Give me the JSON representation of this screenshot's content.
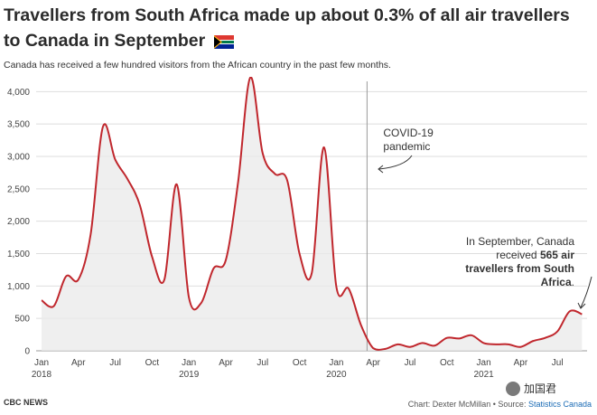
{
  "header": {
    "title": "Travellers from South Africa made up about 0.3% of all air travellers to Canada in September",
    "subtitle": "Canada has received a few hundred visitors from the African country in the past few months.",
    "flag_icon": "south-africa-flag-icon"
  },
  "chart_data": {
    "type": "area",
    "title": "Travellers from South Africa made up about 0.3% of all air travellers to Canada in September",
    "subtitle": "Canada has received a few hundred visitors from the African country in the past few months.",
    "xlabel": "",
    "ylabel": "",
    "ylim": [
      0,
      4200
    ],
    "yticks": [
      0,
      500,
      1000,
      1500,
      2000,
      2500,
      3000,
      3500,
      4000
    ],
    "ytick_labels": [
      "0",
      "500",
      "1,000",
      "1,500",
      "2,000",
      "2,500",
      "3,000",
      "3,500",
      "4,000"
    ],
    "xticks": [
      {
        "index": 0,
        "label": "Jan",
        "year": "2018"
      },
      {
        "index": 3,
        "label": "Apr",
        "year": ""
      },
      {
        "index": 6,
        "label": "Jul",
        "year": ""
      },
      {
        "index": 9,
        "label": "Oct",
        "year": ""
      },
      {
        "index": 12,
        "label": "Jan",
        "year": "2019"
      },
      {
        "index": 15,
        "label": "Apr",
        "year": ""
      },
      {
        "index": 18,
        "label": "Jul",
        "year": ""
      },
      {
        "index": 21,
        "label": "Oct",
        "year": ""
      },
      {
        "index": 24,
        "label": "Jan",
        "year": "2020"
      },
      {
        "index": 27,
        "label": "Apr",
        "year": ""
      },
      {
        "index": 30,
        "label": "Jul",
        "year": ""
      },
      {
        "index": 33,
        "label": "Oct",
        "year": ""
      },
      {
        "index": 36,
        "label": "Jan",
        "year": "2021"
      },
      {
        "index": 39,
        "label": "Apr",
        "year": ""
      },
      {
        "index": 42,
        "label": "Jul",
        "year": ""
      }
    ],
    "months": [
      "2018-01",
      "2018-02",
      "2018-03",
      "2018-04",
      "2018-05",
      "2018-06",
      "2018-07",
      "2018-08",
      "2018-09",
      "2018-10",
      "2018-11",
      "2018-12",
      "2019-01",
      "2019-02",
      "2019-03",
      "2019-04",
      "2019-05",
      "2019-06",
      "2019-07",
      "2019-08",
      "2019-09",
      "2019-10",
      "2019-11",
      "2019-12",
      "2020-01",
      "2020-02",
      "2020-03",
      "2020-04",
      "2020-05",
      "2020-06",
      "2020-07",
      "2020-08",
      "2020-09",
      "2020-10",
      "2020-11",
      "2020-12",
      "2021-01",
      "2021-02",
      "2021-03",
      "2021-04",
      "2021-05",
      "2021-06",
      "2021-07",
      "2021-08",
      "2021-09"
    ],
    "series": [
      {
        "name": "",
        "color": "#c0272d",
        "values": [
          780,
          690,
          1150,
          1100,
          1800,
          3460,
          2950,
          2650,
          2250,
          1450,
          1100,
          2570,
          820,
          740,
          1270,
          1400,
          2600,
          4220,
          3050,
          2730,
          2630,
          1500,
          1200,
          3140,
          990,
          960,
          400,
          40,
          30,
          100,
          60,
          120,
          80,
          200,
          190,
          240,
          120,
          100,
          100,
          60,
          150,
          200,
          300,
          610,
          565
        ]
      }
    ],
    "grid": true,
    "legend": "none",
    "annotations": [
      {
        "text_lines": [
          "COVID-19",
          "pandemic"
        ],
        "x_index": 26.5,
        "type": "vertical-line"
      },
      {
        "text_lines": [
          "In September, Canada",
          "received 565 air",
          "travellers from South",
          "Africa."
        ],
        "bold_phrases": [
          "565 air",
          "travellers from South"
        ],
        "x_index": 44
      }
    ]
  },
  "footer": {
    "source_left": "CBC NEWS",
    "credit": "Chart: Dexter McMillan • Source: ",
    "source_link": "Statistics Canada",
    "watermark": "加国君"
  }
}
